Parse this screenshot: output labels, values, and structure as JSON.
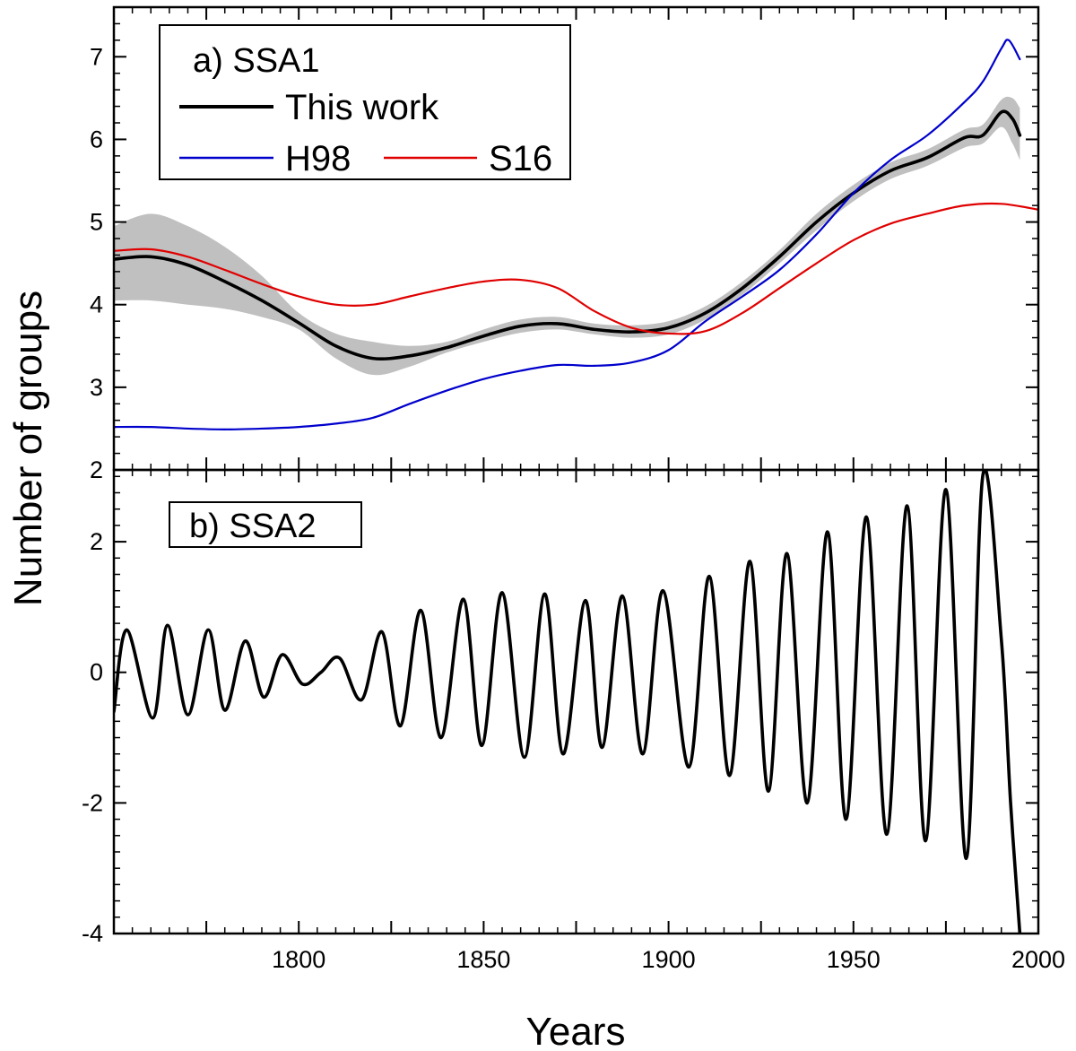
{
  "chart_data": [
    {
      "type": "line",
      "panel_label": "a) SSA1",
      "xlim": [
        1750,
        2000
      ],
      "ylim": [
        2,
        7.6
      ],
      "yticks": [
        2,
        3,
        4,
        5,
        6,
        7
      ],
      "ytick_labels": [
        "2",
        "3",
        "4",
        "5",
        "6",
        "7"
      ],
      "legend_position": "top-left",
      "series": [
        {
          "name": "This work",
          "color": "#000000",
          "band_color": "#c0c0c0",
          "x": [
            1750,
            1760,
            1770,
            1780,
            1790,
            1800,
            1810,
            1820,
            1830,
            1840,
            1850,
            1860,
            1870,
            1880,
            1890,
            1900,
            1910,
            1920,
            1930,
            1940,
            1950,
            1960,
            1970,
            1980,
            1985,
            1990,
            1993,
            1995
          ],
          "y": [
            4.55,
            4.58,
            4.48,
            4.28,
            4.05,
            3.78,
            3.5,
            3.35,
            3.38,
            3.48,
            3.62,
            3.74,
            3.77,
            3.7,
            3.67,
            3.72,
            3.9,
            4.2,
            4.58,
            5.0,
            5.35,
            5.62,
            5.78,
            6.02,
            6.05,
            6.33,
            6.25,
            6.05
          ],
          "band_lower": [
            4.05,
            4.05,
            4.0,
            3.95,
            3.85,
            3.7,
            3.35,
            3.15,
            3.25,
            3.42,
            3.55,
            3.66,
            3.7,
            3.64,
            3.6,
            3.64,
            3.82,
            4.12,
            4.5,
            4.9,
            5.25,
            5.52,
            5.68,
            5.9,
            5.95,
            6.15,
            5.95,
            5.75
          ],
          "band_upper": [
            4.95,
            5.1,
            4.95,
            4.7,
            4.35,
            3.9,
            3.65,
            3.55,
            3.5,
            3.55,
            3.7,
            3.82,
            3.85,
            3.77,
            3.75,
            3.8,
            3.98,
            4.28,
            4.66,
            5.1,
            5.45,
            5.72,
            5.88,
            6.12,
            6.18,
            6.48,
            6.5,
            6.38
          ]
        },
        {
          "name": "H98",
          "color": "#0000cc",
          "x": [
            1750,
            1760,
            1770,
            1780,
            1790,
            1800,
            1810,
            1820,
            1830,
            1840,
            1850,
            1860,
            1870,
            1880,
            1890,
            1900,
            1910,
            1920,
            1930,
            1940,
            1950,
            1960,
            1970,
            1980,
            1985,
            1990,
            1992,
            1995
          ],
          "y": [
            2.52,
            2.52,
            2.5,
            2.49,
            2.5,
            2.52,
            2.56,
            2.63,
            2.8,
            2.96,
            3.1,
            3.2,
            3.27,
            3.26,
            3.3,
            3.45,
            3.8,
            4.1,
            4.42,
            4.85,
            5.35,
            5.75,
            6.05,
            6.45,
            6.7,
            7.1,
            7.2,
            6.97
          ]
        },
        {
          "name": "S16",
          "color": "#e00000",
          "x": [
            1750,
            1760,
            1770,
            1780,
            1790,
            1800,
            1810,
            1820,
            1830,
            1840,
            1850,
            1860,
            1870,
            1880,
            1890,
            1900,
            1910,
            1920,
            1930,
            1940,
            1950,
            1960,
            1970,
            1980,
            1990,
            2000
          ],
          "y": [
            4.65,
            4.67,
            4.58,
            4.42,
            4.25,
            4.1,
            4.0,
            4.0,
            4.1,
            4.2,
            4.28,
            4.3,
            4.2,
            3.92,
            3.72,
            3.65,
            3.68,
            3.9,
            4.2,
            4.5,
            4.78,
            4.98,
            5.1,
            5.2,
            5.22,
            5.15
          ]
        }
      ]
    },
    {
      "type": "line",
      "panel_label": "b) SSA2",
      "xlim": [
        1750,
        2000
      ],
      "ylim": [
        -4,
        3.1
      ],
      "yticks": [
        -4,
        -2,
        0,
        2
      ],
      "ytick_labels": [
        "-4",
        "-2",
        "0",
        "2"
      ],
      "xticks": [
        1800,
        1850,
        1900,
        1950,
        2000
      ],
      "xtick_labels": [
        "1800",
        "1850",
        "1900",
        "1950",
        "2000"
      ],
      "xlabel": "Years",
      "series": [
        {
          "name": "This work",
          "color": "#000000",
          "band_color": "#c0c0c0",
          "x": [
            1750,
            1753.5,
            1760.5,
            1764.5,
            1770,
            1775.5,
            1780,
            1785.5,
            1790.5,
            1795.5,
            1801,
            1806,
            1811,
            1817,
            1822.5,
            1827.5,
            1833,
            1838.5,
            1844.5,
            1849.5,
            1855,
            1861,
            1866.5,
            1871.5,
            1877.5,
            1882,
            1887.5,
            1893,
            1898.5,
            1905.5,
            1911,
            1916.5,
            1922,
            1927,
            1932,
            1937.5,
            1943,
            1948,
            1953.5,
            1959,
            1964.5,
            1969.5,
            1975,
            1980.5,
            1985,
            1990,
            1992.5,
            1995
          ],
          "y": [
            -0.6,
            0.65,
            -0.7,
            0.72,
            -0.65,
            0.65,
            -0.58,
            0.48,
            -0.38,
            0.27,
            -0.18,
            0.0,
            0.22,
            -0.42,
            0.62,
            -0.82,
            0.95,
            -1.0,
            1.12,
            -1.12,
            1.22,
            -1.3,
            1.2,
            -1.25,
            1.1,
            -1.15,
            1.17,
            -1.25,
            1.25,
            -1.45,
            1.47,
            -1.58,
            1.7,
            -1.82,
            1.82,
            -2.0,
            2.15,
            -2.25,
            2.38,
            -2.48,
            2.55,
            -2.58,
            2.8,
            -2.85,
            3.02,
            0.5,
            -2.0,
            -4.0
          ]
        }
      ]
    }
  ],
  "axes": {
    "ylabel": "Number of groups"
  },
  "legend": {
    "items": [
      "This work",
      "H98",
      "S16"
    ]
  }
}
